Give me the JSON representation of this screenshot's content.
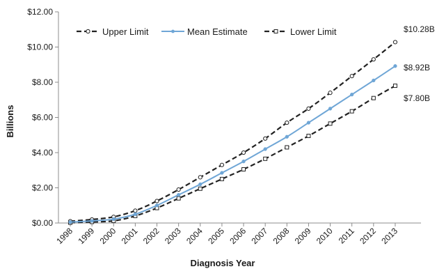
{
  "chart_data": {
    "type": "line",
    "title": "",
    "xlabel": "Diagnosis Year",
    "ylabel": "Billions",
    "categories": [
      "1998",
      "1999",
      "2000",
      "2001",
      "2002",
      "2003",
      "2004",
      "2005",
      "2006",
      "2007",
      "2008",
      "2009",
      "2010",
      "2011",
      "2012",
      "2013"
    ],
    "y_tick_labels": [
      "$0.00",
      "$2.00",
      "$4.00",
      "$6.00",
      "$8.00",
      "$10.00",
      "$12.00"
    ],
    "ylim": [
      0,
      12
    ],
    "grid": false,
    "legend_position": "top-left",
    "series": [
      {
        "name": "Upper Limit",
        "style": "dashed",
        "color": "#222222",
        "marker": "open-circle",
        "values": [
          0.1,
          0.2,
          0.35,
          0.7,
          1.25,
          1.9,
          2.6,
          3.3,
          4.0,
          4.8,
          5.7,
          6.5,
          7.4,
          8.35,
          9.3,
          10.28
        ],
        "end_label": "$10.28B"
      },
      {
        "name": "Mean Estimate",
        "style": "solid",
        "color": "#6fa6d6",
        "marker": "filled-dot",
        "values": [
          0.05,
          0.12,
          0.22,
          0.5,
          1.0,
          1.6,
          2.2,
          2.85,
          3.5,
          4.2,
          4.9,
          5.7,
          6.5,
          7.3,
          8.1,
          8.92
        ],
        "end_label": "$8.92B"
      },
      {
        "name": "Lower Limit",
        "style": "dashed",
        "color": "#222222",
        "marker": "open-square",
        "values": [
          0.02,
          0.06,
          0.12,
          0.4,
          0.85,
          1.4,
          1.95,
          2.5,
          3.05,
          3.65,
          4.3,
          4.95,
          5.65,
          6.35,
          7.1,
          7.8
        ],
        "end_label": "$7.80B"
      }
    ]
  }
}
